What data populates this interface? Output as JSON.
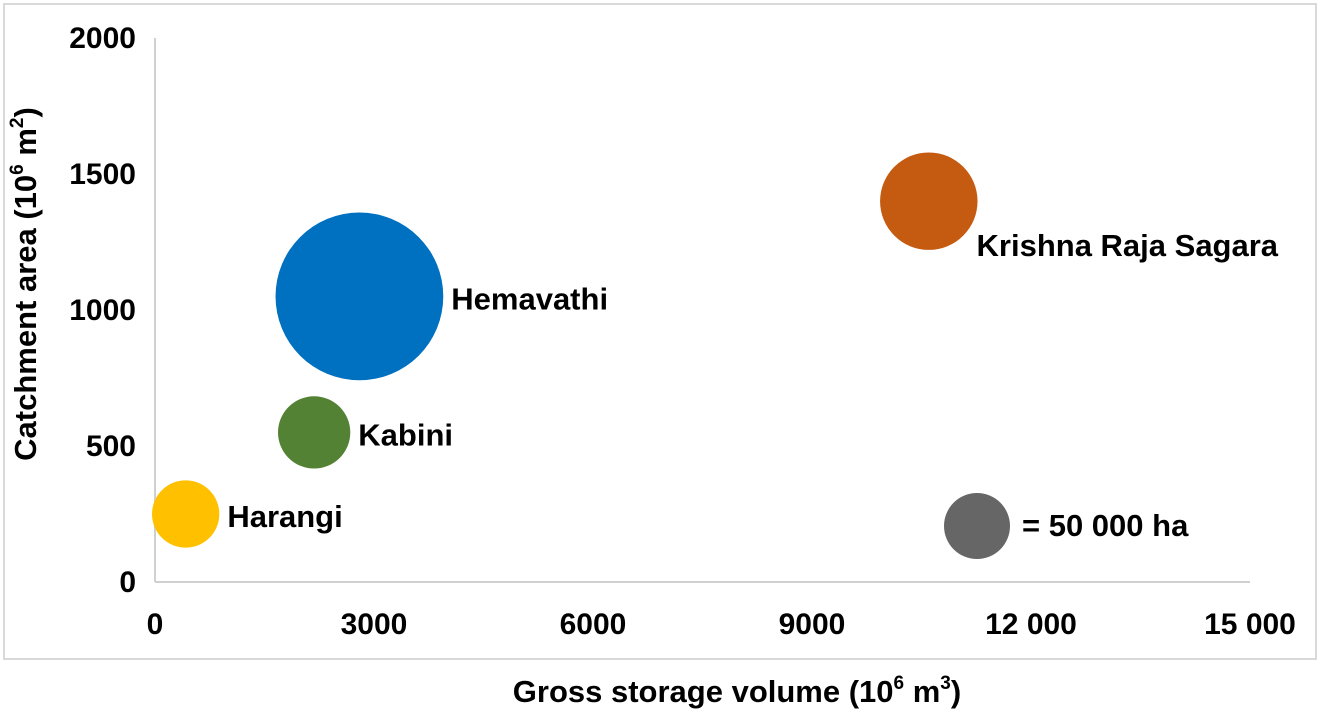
{
  "chart_data": {
    "type": "bubble",
    "xlabel": "Gross storage volume (10",
    "xlabel_exp": "6",
    "xlabel_unit": " m",
    "xlabel_unit_exp": "3",
    "xlabel_close": ")",
    "ylabel": "Catchment area (10",
    "ylabel_exp": "6",
    "ylabel_unit": " m",
    "ylabel_unit_exp": "2",
    "ylabel_close": ")",
    "xlim": [
      0,
      15000
    ],
    "ylim": [
      0,
      2000
    ],
    "x_ticks": [
      {
        "value": 0,
        "label": "0"
      },
      {
        "value": 3000,
        "label": "3000"
      },
      {
        "value": 6000,
        "label": "6000"
      },
      {
        "value": 9000,
        "label": "9000"
      },
      {
        "value": 12000,
        "label": "12 000"
      },
      {
        "value": 15000,
        "label": "15 000"
      }
    ],
    "y_ticks": [
      {
        "value": 0,
        "label": "0"
      },
      {
        "value": 500,
        "label": "500"
      },
      {
        "value": 1000,
        "label": "1000"
      },
      {
        "value": 1500,
        "label": "1500"
      },
      {
        "value": 2000,
        "label": "2000"
      }
    ],
    "grid": false,
    "series": [
      {
        "name": "Harangi",
        "x": 420,
        "y": 250,
        "size": 52000,
        "color": "#FFC000"
      },
      {
        "name": "Kabini",
        "x": 2180,
        "y": 550,
        "size": 60000,
        "color": "#548235"
      },
      {
        "name": "Hemavathi",
        "x": 2800,
        "y": 1050,
        "size": 323000,
        "color": "#0070C0"
      },
      {
        "name": "Krishna Raja Sagara",
        "x": 10600,
        "y": 1400,
        "size": 109000,
        "color": "#C55A11"
      }
    ],
    "size_legend": {
      "label": "= 50 000 ha",
      "size": 50000,
      "color": "#666666"
    }
  }
}
